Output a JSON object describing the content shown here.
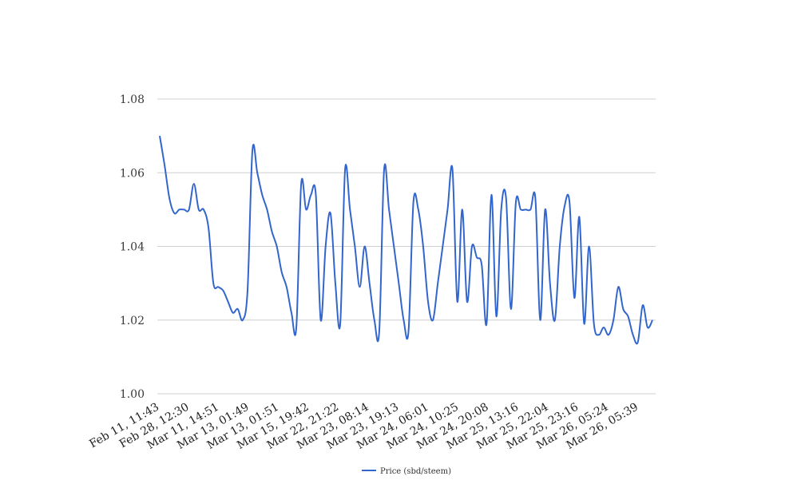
{
  "chart_data": {
    "type": "line",
    "title": "",
    "xlabel": "",
    "ylabel": "",
    "ylim": [
      1.0,
      1.08
    ],
    "y_ticks": [
      "1.00",
      "1.02",
      "1.04",
      "1.06",
      "1.08"
    ],
    "grid": true,
    "legend_position": "bottom",
    "x_tick_labels": [
      "Feb 11, 11:43",
      "Feb 28, 12:30",
      "Mar 11, 14:51",
      "Mar 13, 01:49",
      "Mar 13, 01:51",
      "Mar 15, 19:42",
      "Mar 22, 21:22",
      "Mar 23, 08:14",
      "Mar 23, 19:13",
      "Mar 24, 06:01",
      "Mar 24, 10:25",
      "Mar 24, 20:08",
      "Mar 25, 13:16",
      "Mar 25, 22:04",
      "Mar 25, 23:16",
      "Mar 26, 05:24",
      "Mar 26, 05:39"
    ],
    "series": [
      {
        "name": "Price (sbd/steem)",
        "color": "#3366cc",
        "values": [
          1.07,
          1.062,
          1.053,
          1.049,
          1.05,
          1.05,
          1.05,
          1.057,
          1.05,
          1.05,
          1.045,
          1.03,
          1.029,
          1.028,
          1.025,
          1.022,
          1.023,
          1.02,
          1.028,
          1.066,
          1.06,
          1.054,
          1.05,
          1.044,
          1.04,
          1.033,
          1.029,
          1.022,
          1.018,
          1.057,
          1.05,
          1.054,
          1.054,
          1.02,
          1.04,
          1.049,
          1.03,
          1.019,
          1.061,
          1.05,
          1.04,
          1.029,
          1.04,
          1.03,
          1.02,
          1.017,
          1.061,
          1.05,
          1.04,
          1.03,
          1.02,
          1.017,
          1.052,
          1.05,
          1.04,
          1.025,
          1.02,
          1.03,
          1.04,
          1.05,
          1.061,
          1.025,
          1.05,
          1.025,
          1.04,
          1.037,
          1.035,
          1.019,
          1.054,
          1.021,
          1.05,
          1.053,
          1.023,
          1.052,
          1.05,
          1.05,
          1.05,
          1.053,
          1.02,
          1.05,
          1.03,
          1.02,
          1.04,
          1.051,
          1.052,
          1.026,
          1.048,
          1.019,
          1.04,
          1.019,
          1.016,
          1.018,
          1.016,
          1.02,
          1.029,
          1.023,
          1.021,
          1.016,
          1.014,
          1.024,
          1.018,
          1.02
        ]
      }
    ]
  }
}
